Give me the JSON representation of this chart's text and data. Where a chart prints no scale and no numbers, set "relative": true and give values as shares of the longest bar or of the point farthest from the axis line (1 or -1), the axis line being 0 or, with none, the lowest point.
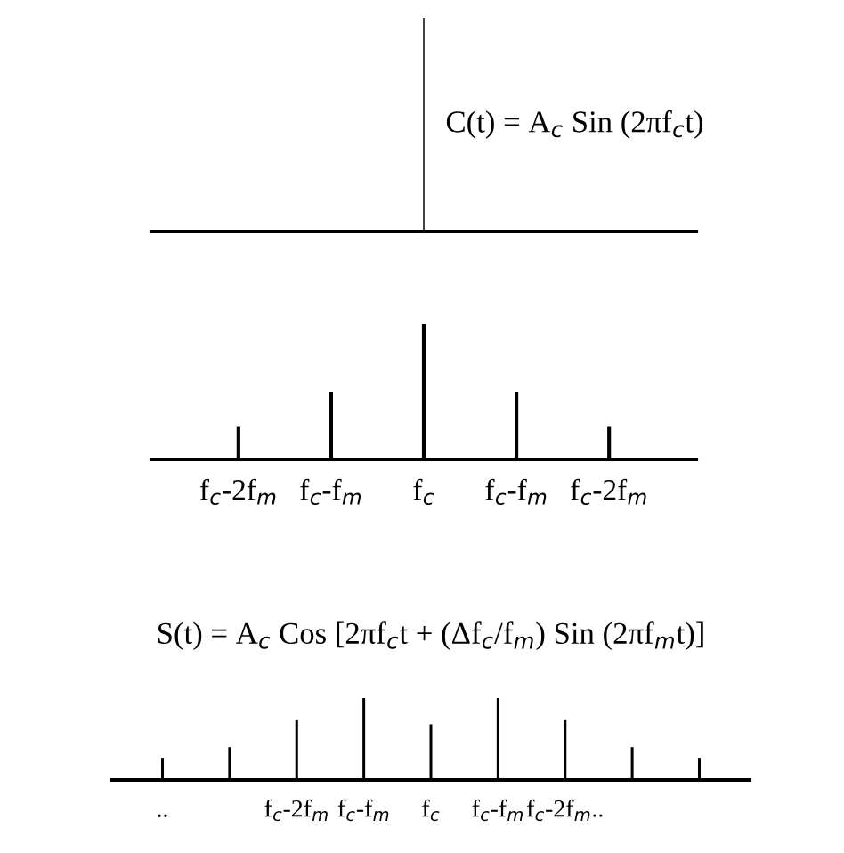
{
  "chart_data": [
    {
      "type": "bar",
      "relative": true,
      "categories": [
        null
      ],
      "values": [
        1
      ],
      "color": "#000000",
      "annotations": [
        "C(t) = A$_{c}$ Sin (2πf$_{c}$t)"
      ]
    },
    {
      "type": "bar",
      "relative": true,
      "categories": [
        "f$_{c}$-2f$_{m}$",
        "f$_{c}$-f$_{m}$",
        "f$_{c}$",
        "f$_{c}$-f$_{m}$",
        "f$_{c}$-2f$_{m}$"
      ],
      "values": [
        0.24,
        0.5,
        1,
        0.5,
        0.24
      ],
      "color": "#000000"
    },
    {
      "type": "bar",
      "relative": true,
      "title": "S(t) = A$_{c}$ Cos [2πf$_{c}$t + (Δf$_{c}$/f$_{m}$) Sin (2πf$_{m}$t)]",
      "categories": [
        "..",
        null,
        "f$_{c}$-2f$_{m}$",
        "f$_{c}$-f$_{m}$",
        "f$_{c}$",
        "f$_{c}$-f$_{m}$",
        "f$_{c}$-2f$_{m}$..",
        null,
        null
      ],
      "values": [
        0.27,
        0.4,
        0.73,
        1,
        0.68,
        1,
        0.73,
        0.4,
        0.27
      ],
      "color": "#000000"
    }
  ]
}
